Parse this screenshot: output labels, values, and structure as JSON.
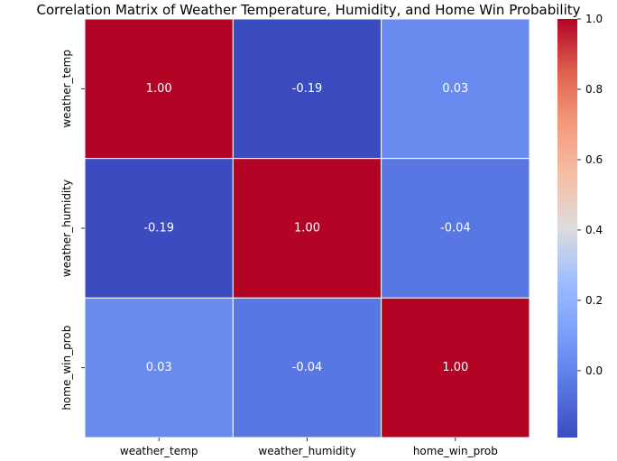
{
  "chart_data": {
    "type": "heatmap",
    "title": "Correlation Matrix of Weather Temperature, Humidity, and Home Win Probability",
    "rows": [
      "weather_temp",
      "weather_humidity",
      "home_win_prob"
    ],
    "columns": [
      "weather_temp",
      "weather_humidity",
      "home_win_prob"
    ],
    "values": [
      [
        1.0,
        -0.19,
        0.03
      ],
      [
        -0.19,
        1.0,
        -0.04
      ],
      [
        0.03,
        -0.04,
        1.0
      ]
    ],
    "annotations": [
      [
        "1.00",
        "-0.19",
        "0.03"
      ],
      [
        "-0.19",
        "1.00",
        "-0.04"
      ],
      [
        "0.03",
        "-0.04",
        "1.00"
      ]
    ],
    "colormap": "coolwarm",
    "colorbar": {
      "min": -0.19,
      "max": 1.0,
      "ticks": [
        0.0,
        0.2,
        0.4,
        0.6,
        0.8,
        1.0
      ],
      "tick_labels": [
        "0.0",
        "0.2",
        "0.4",
        "0.6",
        "0.8",
        "1.0"
      ]
    },
    "grid_line_color": "#ffffff",
    "annotation_color": "#ffffff"
  }
}
